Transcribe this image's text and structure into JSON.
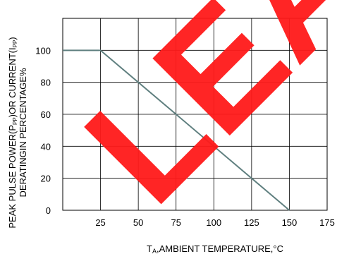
{
  "chart_data": {
    "type": "line",
    "title": "",
    "xlabel_main": "T",
    "xlabel_sub": "A",
    "xlabel_rest": ",AMBIENT TEMPERATURE,°C",
    "ylabel_line1_a": "PEAK PULSE POWER(P",
    "ylabel_line1_sub1": "PP",
    "ylabel_line1_b": ")OR CURRENT(I",
    "ylabel_line1_sub2": "PP",
    "ylabel_line1_c": ")",
    "ylabel_line2": "DERATINGIN PERCENTAGE%",
    "xlim": [
      0,
      175
    ],
    "ylim": [
      0,
      120
    ],
    "x_ticks": [
      25,
      50,
      75,
      100,
      125,
      150,
      175
    ],
    "y_ticks": [
      0,
      20,
      40,
      60,
      80,
      100
    ],
    "grid": true,
    "series": [
      {
        "x": [
          0,
          25,
          150
        ],
        "y": [
          100,
          100,
          0
        ],
        "color": "#5f7f7f"
      }
    ],
    "watermark_text": "LEAR",
    "watermark_color": "#ff1a1a"
  }
}
